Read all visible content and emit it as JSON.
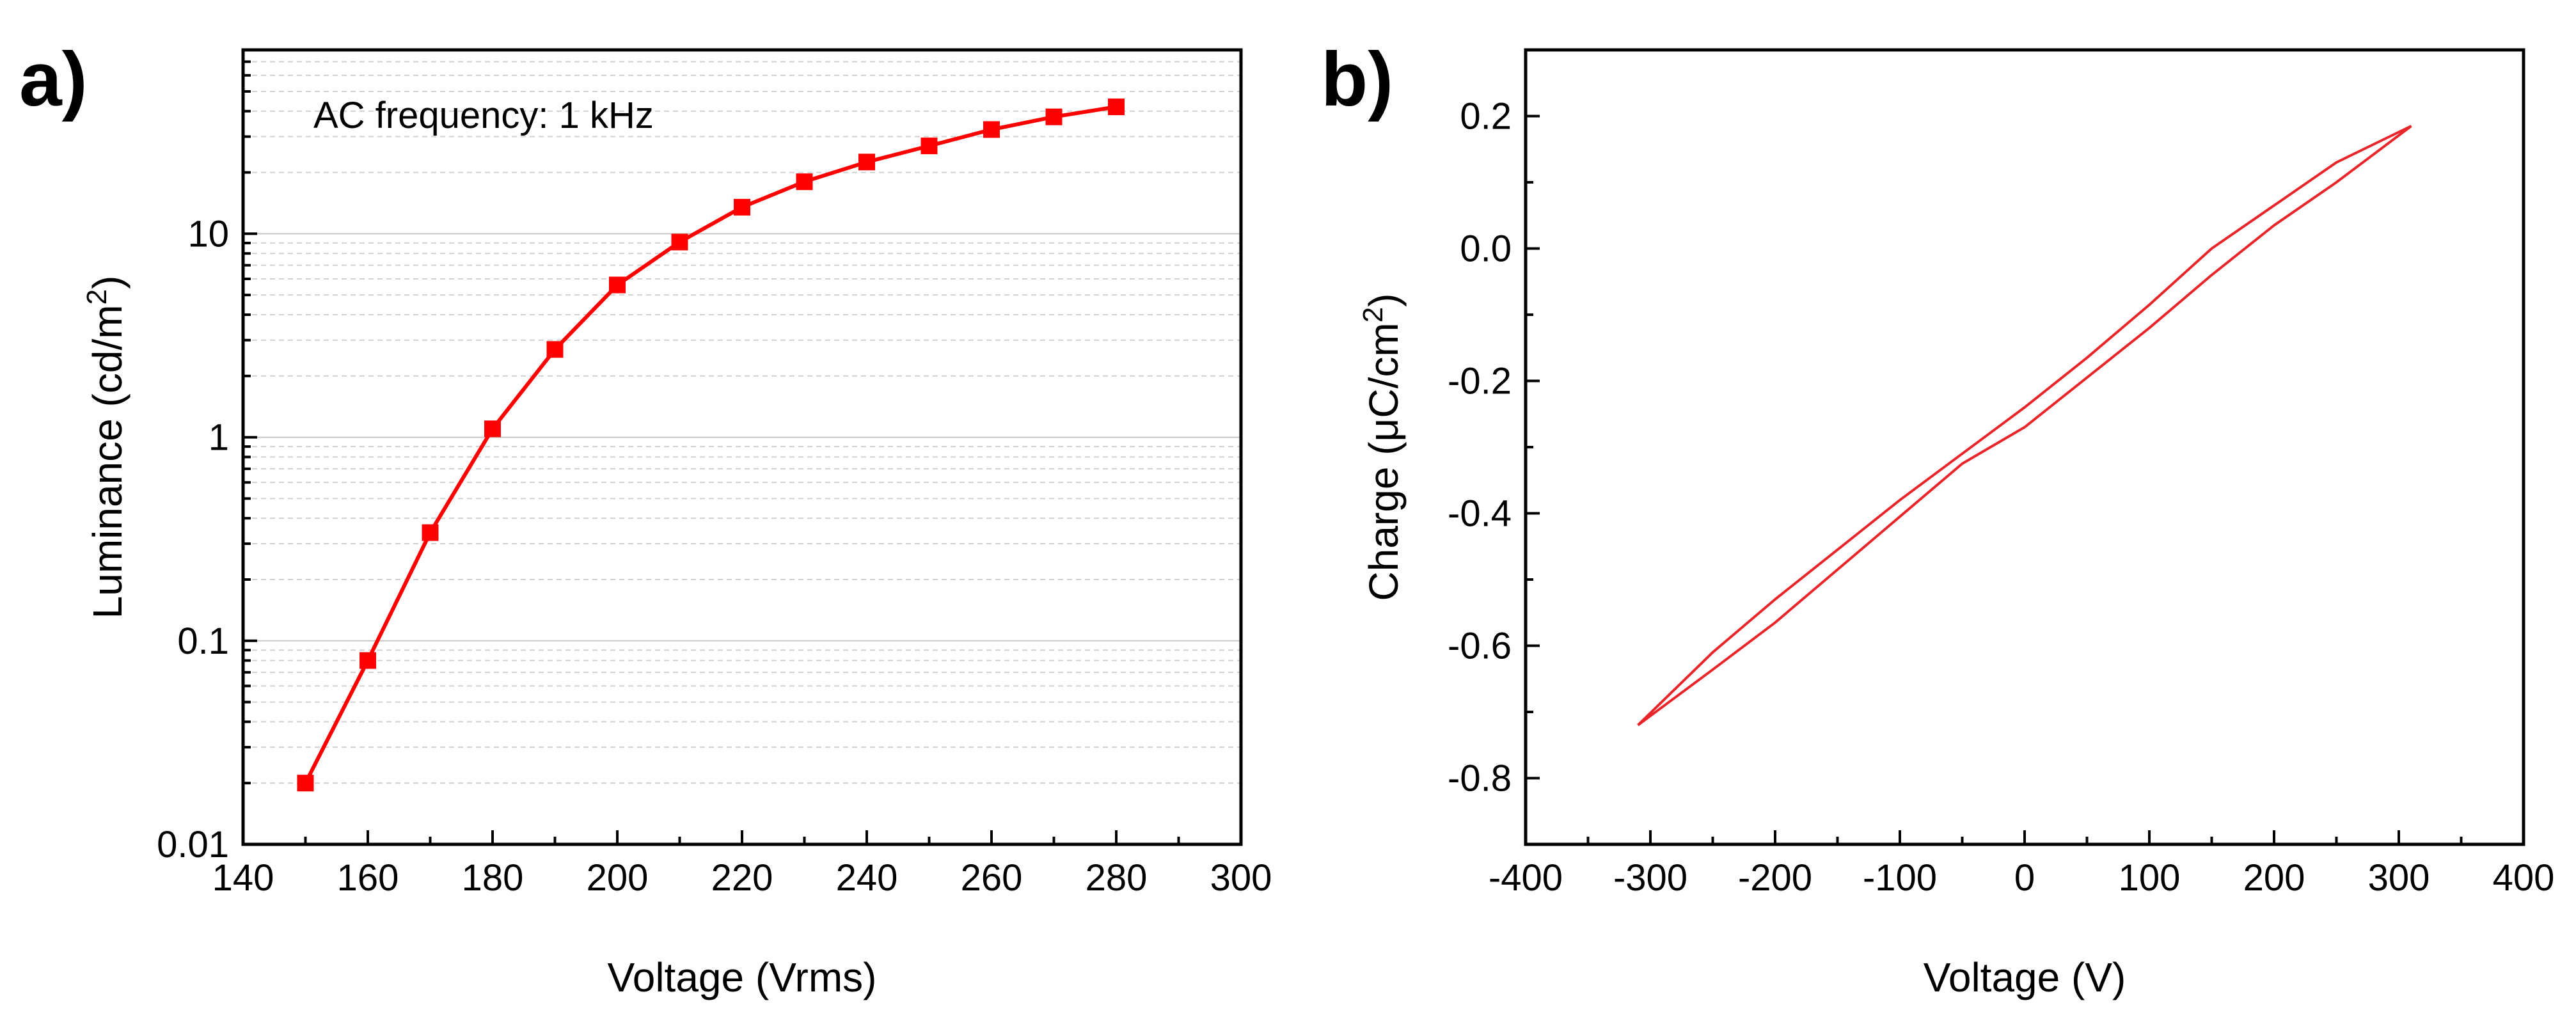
{
  "panels": {
    "a": {
      "label": "a)"
    },
    "b": {
      "label": "b)"
    }
  },
  "chart_data": [
    {
      "type": "line",
      "annotation": "AC frequency: 1 kHz",
      "xlabel": "Voltage (Vrms)",
      "ylabel": "Luminance (cd/m²)",
      "ylabel_base": "Luminance (cd/m",
      "ylabel_sup": "2",
      "ylabel_close": ")",
      "xlim": [
        140,
        300
      ],
      "ylim": [
        0.01,
        80
      ],
      "yscale": "log",
      "grid": true,
      "marker": "square",
      "color": "#ff0000",
      "xticks": [
        "140",
        "160",
        "180",
        "200",
        "220",
        "240",
        "260",
        "280",
        "300"
      ],
      "yticks": [
        "0.01",
        "0.1",
        "1",
        "10"
      ],
      "series": [
        {
          "x": [
            150,
            160,
            170,
            180,
            190,
            200,
            210,
            220,
            230,
            240,
            250,
            260,
            270,
            280
          ],
          "y": [
            0.02,
            0.08,
            0.34,
            1.1,
            2.7,
            5.6,
            9.1,
            13.5,
            18,
            22.5,
            27,
            32.5,
            37.5,
            42
          ]
        }
      ]
    },
    {
      "type": "line",
      "xlabel": "Voltage (V)",
      "ylabel": "Charge (μC/cm²)",
      "ylabel_base": "Charge (μC/cm",
      "ylabel_sup": "2",
      "ylabel_close": ")",
      "xlim": [
        -400,
        400
      ],
      "ylim": [
        -0.9,
        0.3
      ],
      "grid": false,
      "color": "#e8262a",
      "xticks": [
        "-400",
        "-300",
        "-200",
        "-100",
        "0",
        "100",
        "200",
        "300",
        "400"
      ],
      "yticks": [
        "0.2",
        "0.0",
        "-0.2",
        "-0.4",
        "-0.6",
        "-0.8"
      ],
      "series": [
        {
          "x": [
            -310,
            -250,
            -200,
            -150,
            -100,
            -50,
            0,
            50,
            100,
            150,
            200,
            250,
            310
          ],
          "y": [
            -0.72,
            -0.636,
            -0.565,
            -0.485,
            -0.405,
            -0.325,
            -0.27,
            -0.195,
            -0.12,
            -0.04,
            0.035,
            0.1,
            0.185
          ]
        },
        {
          "x": [
            310,
            250,
            200,
            150,
            100,
            50,
            0,
            -50,
            -100,
            -150,
            -200,
            -250,
            -310
          ],
          "y": [
            0.185,
            0.13,
            0.065,
            0.0,
            -0.085,
            -0.165,
            -0.24,
            -0.31,
            -0.38,
            -0.455,
            -0.53,
            -0.61,
            -0.72
          ]
        }
      ]
    }
  ]
}
